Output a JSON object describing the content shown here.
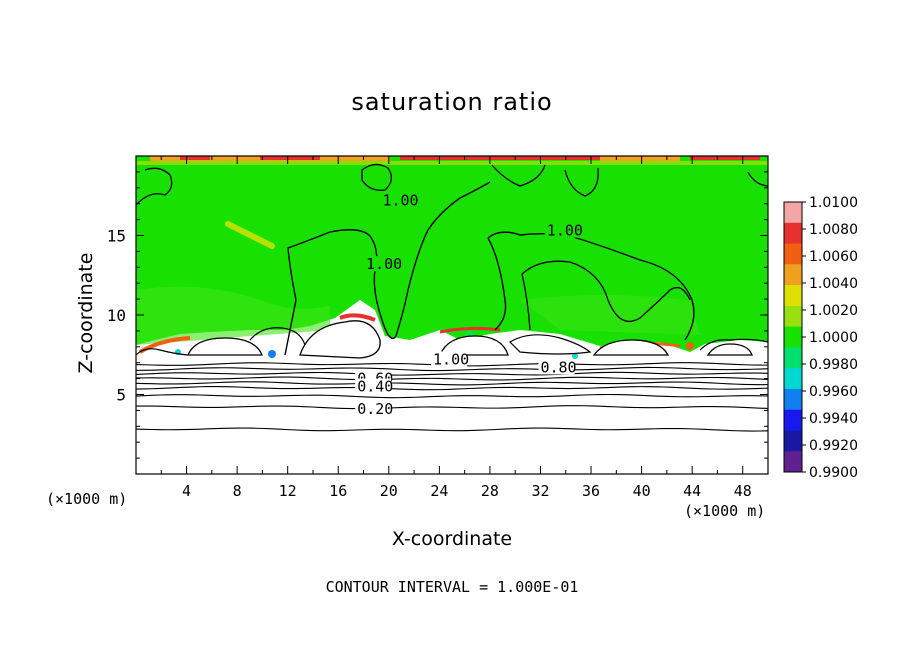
{
  "chart_data": {
    "type": "heatmap",
    "title": "saturation ratio",
    "xlabel": "X-coordinate",
    "ylabel": "Z-coordinate",
    "x_unit_left": "(×1000 m)",
    "x_unit_right": "(×1000 m)",
    "footer": "CONTOUR INTERVAL = 1.000E-01",
    "xlim": [
      0,
      50
    ],
    "ylim": [
      0,
      20
    ],
    "x_ticks": [
      "4",
      "8",
      "12",
      "16",
      "20",
      "24",
      "28",
      "32",
      "36",
      "40",
      "44",
      "48"
    ],
    "y_ticks": [
      "5",
      "10",
      "15"
    ],
    "colorbar": {
      "range": [
        0.99,
        1.01
      ],
      "labels": [
        "1.0100",
        "1.0080",
        "1.0060",
        "1.0040",
        "1.0020",
        "1.0000",
        "0.9980",
        "0.9960",
        "0.9940",
        "0.9920",
        "0.9900"
      ],
      "colors": [
        "#f4a6a6",
        "#e8302c",
        "#f06010",
        "#f0a020",
        "#e0e000",
        "#98e010",
        "#18e000",
        "#00e070",
        "#00d8d0",
        "#1080f0",
        "#1818f0",
        "#1818a0",
        "#602090"
      ]
    },
    "contour_labels": [
      {
        "text": "1.00",
        "x": 19.5,
        "z": 17.2
      },
      {
        "text": "1.00",
        "x": 32.5,
        "z": 15.3
      },
      {
        "text": "1.00",
        "x": 18.2,
        "z": 13.2
      },
      {
        "text": "1.00",
        "x": 23.5,
        "z": 7.2
      },
      {
        "text": "0.80",
        "x": 32.0,
        "z": 6.7
      },
      {
        "text": "0.60",
        "x": 17.5,
        "z": 6.0
      },
      {
        "text": "0.40",
        "x": 17.5,
        "z": 5.5
      },
      {
        "text": "0.20",
        "x": 17.5,
        "z": 4.1
      }
    ],
    "dry_layer_contours_z": [
      6.9,
      6.6,
      6.3,
      6.0,
      5.7,
      5.4,
      4.9,
      4.2,
      2.8
    ],
    "saturated_region_z": [
      8.5,
      19.5
    ],
    "field_note": "",
    "background_value": 1.0
  }
}
